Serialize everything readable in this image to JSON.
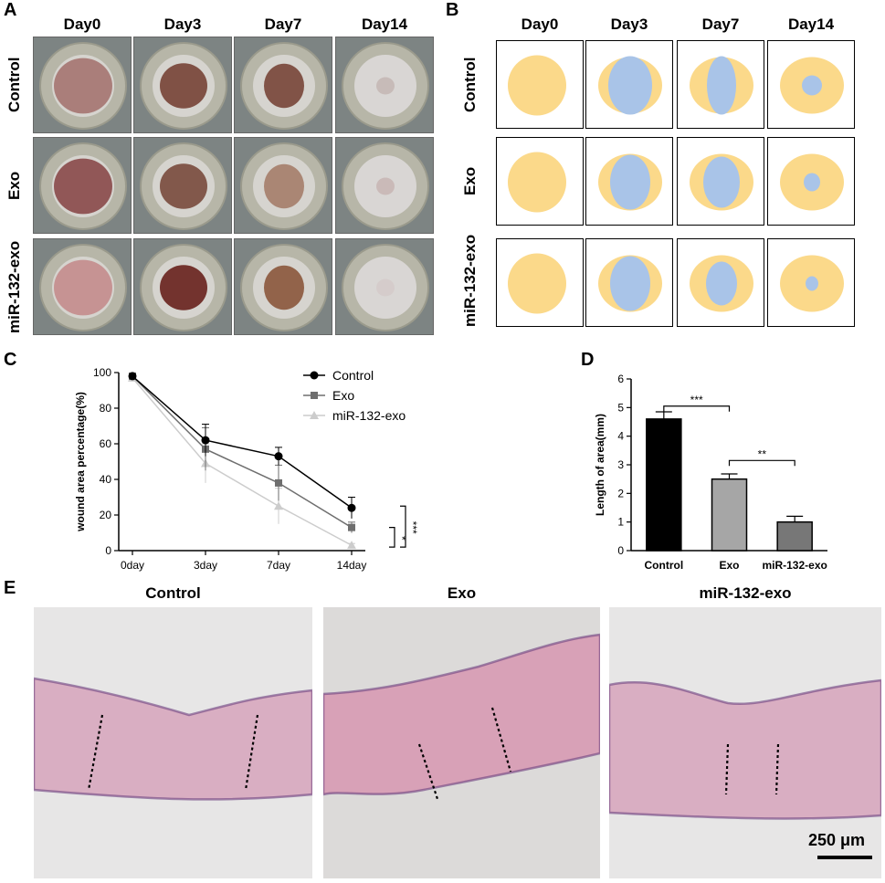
{
  "panels": {
    "A": "A",
    "B": "B",
    "C": "C",
    "D": "D",
    "E": "E"
  },
  "days": [
    "Day0",
    "Day3",
    "Day7",
    "Day14"
  ],
  "groups": [
    "Control",
    "Exo",
    "miR-132-exo"
  ],
  "colors": {
    "wound_outline": "#fbd98a",
    "remaining_wound": "#a9c4e8",
    "control_line": "#000000",
    "exo_line": "#6e6e6e",
    "mir_line": "#cccccc",
    "bar_control": "#000000",
    "bar_exo": "#a6a6a6",
    "bar_mir": "#777777"
  },
  "chart_data": [
    {
      "type": "line",
      "panel": "C",
      "ylabel": "wound area percentage(%)",
      "xlabel": "",
      "categories": [
        "0day",
        "3day",
        "7day",
        "14day"
      ],
      "ylim": [
        0,
        100
      ],
      "yticks": [
        "0",
        "20",
        "40",
        "60",
        "80",
        "100"
      ],
      "series": [
        {
          "name": "Control",
          "values": [
            98,
            62,
            53,
            24
          ],
          "err": [
            1,
            9,
            5,
            6
          ]
        },
        {
          "name": "Exo",
          "values": [
            98,
            57,
            38,
            13
          ],
          "err": [
            1,
            12,
            10,
            3
          ]
        },
        {
          "name": "miR-132-exo",
          "values": [
            97,
            49,
            25,
            3
          ],
          "err": [
            1,
            11,
            10,
            1
          ]
        }
      ],
      "legend": "top-right",
      "significance": [
        "*",
        "***"
      ]
    },
    {
      "type": "bar",
      "panel": "D",
      "ylabel": "Length of area(mm)",
      "categories": [
        "Control",
        "Exo",
        "miR-132-exo"
      ],
      "values": [
        4.6,
        2.5,
        1.0
      ],
      "err": [
        0.25,
        0.18,
        0.2
      ],
      "ylim": [
        0,
        6
      ],
      "yticks": [
        "0",
        "1",
        "2",
        "3",
        "4",
        "5",
        "6"
      ],
      "significance": [
        "***",
        "**"
      ]
    }
  ],
  "histology": {
    "titles": [
      "Control",
      "Exo",
      "miR-132-exo"
    ],
    "scale_bar": "250 μm"
  }
}
